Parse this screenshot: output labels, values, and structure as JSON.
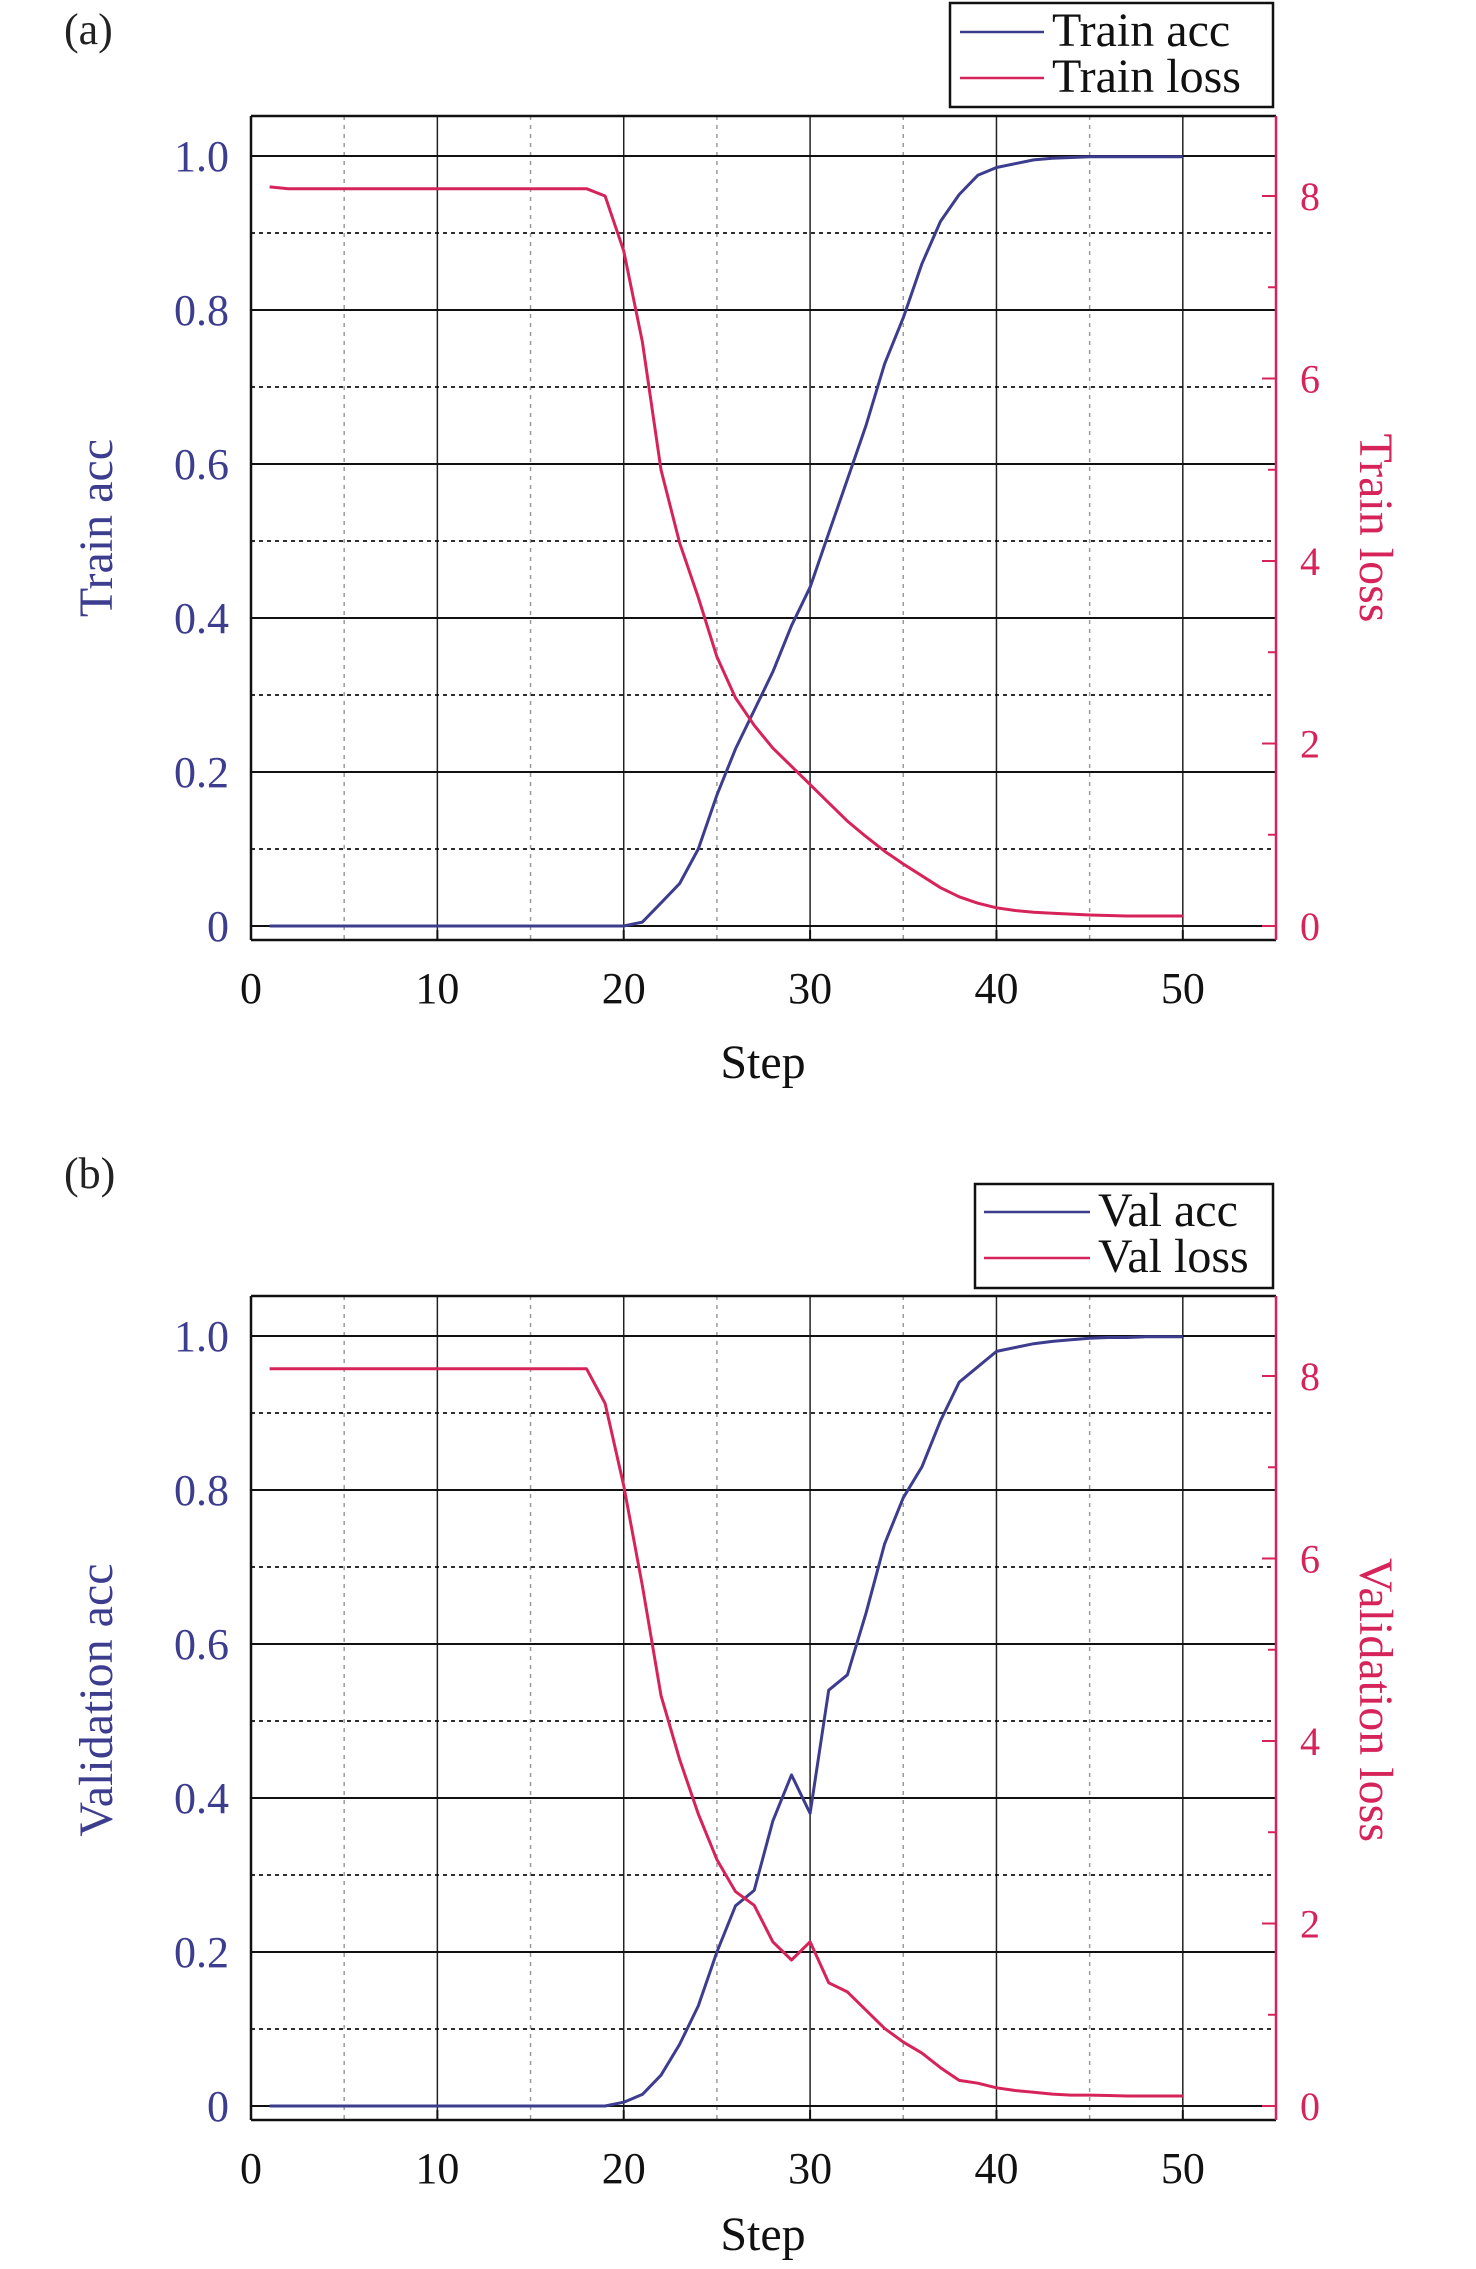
{
  "colors": {
    "acc": "#3d3d8f",
    "loss": "#d6245a",
    "grid": "#111111",
    "axis": "#111111"
  },
  "chart_data": [
    {
      "type": "line",
      "panel_label": "(a)",
      "xlabel": "Step",
      "ylabel_left": "Train acc",
      "ylabel_right": "Train loss",
      "xlim": [
        0,
        55
      ],
      "xticks": [
        0,
        10,
        20,
        30,
        40,
        50
      ],
      "ylim_left": [
        0,
        1.0
      ],
      "yticks_left": [
        "0",
        "0.2",
        "0.4",
        "0.6",
        "0.8",
        "1.0"
      ],
      "ylim_right": [
        0,
        8.4
      ],
      "yticks_right": [
        "0",
        "2",
        "4",
        "6",
        "8"
      ],
      "grid": true,
      "legend_position": "top-right",
      "series": [
        {
          "name": "Train acc",
          "axis": "left",
          "color": "#3d3d8f",
          "x": [
            1,
            2,
            3,
            4,
            5,
            6,
            7,
            8,
            9,
            10,
            11,
            12,
            13,
            14,
            15,
            16,
            17,
            18,
            19,
            20,
            21,
            22,
            23,
            24,
            25,
            26,
            27,
            28,
            29,
            30,
            31,
            32,
            33,
            34,
            35,
            36,
            37,
            38,
            39,
            40,
            41,
            42,
            43,
            44,
            45,
            46,
            47,
            48,
            49,
            50
          ],
          "y": [
            0,
            0,
            0,
            0,
            0,
            0,
            0,
            0,
            0,
            0,
            0,
            0,
            0,
            0,
            0,
            0,
            0,
            0,
            0,
            0,
            0.005,
            0.03,
            0.055,
            0.1,
            0.17,
            0.23,
            0.28,
            0.33,
            0.39,
            0.44,
            0.51,
            0.58,
            0.65,
            0.73,
            0.79,
            0.86,
            0.915,
            0.95,
            0.975,
            0.985,
            0.99,
            0.995,
            0.997,
            0.998,
            0.999,
            0.999,
            0.999,
            0.999,
            0.999,
            0.999
          ]
        },
        {
          "name": "Train loss",
          "axis": "right",
          "color": "#d6245a",
          "x": [
            1,
            2,
            3,
            4,
            5,
            6,
            7,
            8,
            9,
            10,
            11,
            12,
            13,
            14,
            15,
            16,
            17,
            18,
            19,
            20,
            21,
            22,
            23,
            24,
            25,
            26,
            27,
            28,
            29,
            30,
            31,
            32,
            33,
            34,
            35,
            36,
            37,
            38,
            39,
            40,
            41,
            42,
            43,
            44,
            45,
            46,
            47,
            48,
            49,
            50
          ],
          "y": [
            8.1,
            8.08,
            8.08,
            8.08,
            8.08,
            8.08,
            8.08,
            8.08,
            8.08,
            8.08,
            8.08,
            8.08,
            8.08,
            8.08,
            8.08,
            8.08,
            8.08,
            8.08,
            8.0,
            7.4,
            6.4,
            5.0,
            4.2,
            3.6,
            2.95,
            2.5,
            2.2,
            1.95,
            1.75,
            1.55,
            1.35,
            1.15,
            0.98,
            0.82,
            0.68,
            0.55,
            0.42,
            0.32,
            0.25,
            0.2,
            0.17,
            0.15,
            0.14,
            0.13,
            0.12,
            0.115,
            0.11,
            0.11,
            0.11,
            0.11
          ]
        }
      ]
    },
    {
      "type": "line",
      "panel_label": "(b)",
      "xlabel": "Step",
      "ylabel_left": "Validation acc",
      "ylabel_right": "Validation loss",
      "xlim": [
        0,
        55
      ],
      "xticks": [
        0,
        10,
        20,
        30,
        40,
        50
      ],
      "ylim_left": [
        0,
        1.0
      ],
      "yticks_left": [
        "0",
        "0.2",
        "0.4",
        "0.6",
        "0.8",
        "1.0"
      ],
      "ylim_right": [
        0,
        8.4
      ],
      "yticks_right": [
        "0",
        "2",
        "4",
        "6",
        "8"
      ],
      "grid": true,
      "legend_position": "top-right",
      "series": [
        {
          "name": "Val acc",
          "axis": "left",
          "color": "#3d3d8f",
          "x": [
            1,
            2,
            3,
            4,
            5,
            6,
            7,
            8,
            9,
            10,
            11,
            12,
            13,
            14,
            15,
            16,
            17,
            18,
            19,
            20,
            21,
            22,
            23,
            24,
            25,
            26,
            27,
            28,
            29,
            30,
            31,
            32,
            33,
            34,
            35,
            36,
            37,
            38,
            39,
            40,
            41,
            42,
            43,
            44,
            45,
            46,
            47,
            48,
            49,
            50
          ],
          "y": [
            0,
            0,
            0,
            0,
            0,
            0,
            0,
            0,
            0,
            0,
            0,
            0,
            0,
            0,
            0,
            0,
            0,
            0,
            0,
            0.005,
            0.015,
            0.04,
            0.08,
            0.13,
            0.2,
            0.26,
            0.28,
            0.37,
            0.43,
            0.38,
            0.54,
            0.56,
            0.64,
            0.73,
            0.79,
            0.83,
            0.89,
            0.94,
            0.96,
            0.98,
            0.985,
            0.99,
            0.993,
            0.995,
            0.997,
            0.998,
            0.998,
            0.999,
            0.999,
            0.999
          ]
        },
        {
          "name": "Val loss",
          "axis": "right",
          "color": "#d6245a",
          "x": [
            1,
            2,
            3,
            4,
            5,
            6,
            7,
            8,
            9,
            10,
            11,
            12,
            13,
            14,
            15,
            16,
            17,
            18,
            19,
            20,
            21,
            22,
            23,
            24,
            25,
            26,
            27,
            28,
            29,
            30,
            31,
            32,
            33,
            34,
            35,
            36,
            37,
            38,
            39,
            40,
            41,
            42,
            43,
            44,
            45,
            46,
            47,
            48,
            49,
            50
          ],
          "y": [
            8.08,
            8.08,
            8.08,
            8.08,
            8.08,
            8.08,
            8.08,
            8.08,
            8.08,
            8.08,
            8.08,
            8.08,
            8.08,
            8.08,
            8.08,
            8.08,
            8.08,
            8.08,
            7.7,
            6.8,
            5.7,
            4.5,
            3.8,
            3.2,
            2.7,
            2.35,
            2.2,
            1.8,
            1.6,
            1.8,
            1.35,
            1.25,
            1.05,
            0.85,
            0.7,
            0.58,
            0.42,
            0.28,
            0.25,
            0.2,
            0.17,
            0.15,
            0.13,
            0.12,
            0.12,
            0.115,
            0.11,
            0.11,
            0.11,
            0.11
          ]
        }
      ]
    }
  ]
}
